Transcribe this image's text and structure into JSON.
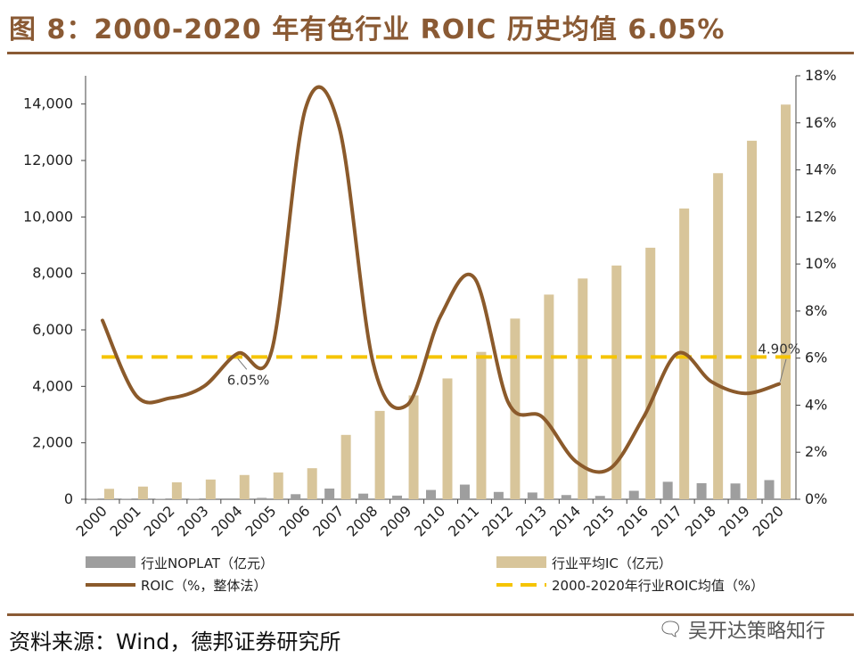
{
  "header": {
    "title": "图 8：2000-2020 年有色行业 ROIC 历史均值 6.05%"
  },
  "footer": {
    "source": "资料来源：Wind，德邦证券研究所",
    "watermark": "吴开达策略知行"
  },
  "colors": {
    "noplat_bar": "#9e9e9e",
    "ic_bar": "#d8c59a",
    "roic_line": "#8b5a2b",
    "avg_line": "#f5c400",
    "brand": "#8a5a34"
  },
  "chart_data": {
    "type": "bar",
    "title": "2000-2020 年有色行业 ROIC 历史均值 6.05%",
    "categories": [
      "2000",
      "2001",
      "2002",
      "2003",
      "2004",
      "2005",
      "2006",
      "2007",
      "2008",
      "2009",
      "2010",
      "2011",
      "2012",
      "2013",
      "2014",
      "2015",
      "2016",
      "2017",
      "2018",
      "2019",
      "2020"
    ],
    "y_left": {
      "min": 0,
      "max": 15000,
      "ticks": [
        0,
        2000,
        4000,
        6000,
        8000,
        10000,
        12000,
        14000
      ],
      "tick_labels": [
        "0",
        "2,000",
        "4,000",
        "6,000",
        "8,000",
        "10,000",
        "12,000",
        "14,000"
      ]
    },
    "y_right": {
      "min": 0,
      "max": 18,
      "ticks": [
        0,
        2,
        4,
        6,
        8,
        10,
        12,
        14,
        16,
        18
      ],
      "tick_labels": [
        "0%",
        "2%",
        "4%",
        "6%",
        "8%",
        "10%",
        "12%",
        "14%",
        "16%",
        "18%"
      ]
    },
    "series": [
      {
        "name": "行业NOPLAT（亿元）",
        "kind": "bar",
        "axis": "left",
        "values": [
          10,
          12,
          15,
          18,
          30,
          50,
          180,
          380,
          200,
          130,
          330,
          520,
          260,
          240,
          150,
          120,
          300,
          620,
          570,
          560,
          680
        ]
      },
      {
        "name": "行业平均IC（亿元）",
        "kind": "bar",
        "axis": "left",
        "values": [
          370,
          450,
          600,
          700,
          860,
          950,
          1100,
          2280,
          3130,
          3680,
          4280,
          5220,
          6400,
          7250,
          7820,
          8280,
          8910,
          10300,
          11550,
          12700,
          13980
        ]
      },
      {
        "name": "ROIC（%，整体法）",
        "kind": "line",
        "axis": "right",
        "values": [
          7.6,
          4.4,
          4.3,
          4.8,
          6.2,
          6.3,
          16.6,
          15.8,
          5.8,
          4.0,
          7.8,
          9.4,
          4.1,
          3.5,
          1.6,
          1.3,
          3.5,
          6.2,
          5.0,
          4.5,
          4.9
        ]
      },
      {
        "name": "2000-2020年行业ROIC均值（%）",
        "kind": "hline",
        "axis": "right",
        "value": 6.05
      }
    ],
    "annotations": [
      {
        "text": "6.05%",
        "year": "2004",
        "value": 6.05
      },
      {
        "text": "4.90%",
        "year": "2020",
        "value": 4.9
      }
    ],
    "legend": [
      {
        "label": "行业NOPLAT（亿元）",
        "swatch": "bar-gray"
      },
      {
        "label": "行业平均IC（亿元）",
        "swatch": "bar-tan"
      },
      {
        "label": "ROIC（%，整体法）",
        "swatch": "line-brown"
      },
      {
        "label": "2000-2020年行业ROIC均值（%）",
        "swatch": "dash-yellow"
      }
    ],
    "legend_position": "bottom"
  }
}
